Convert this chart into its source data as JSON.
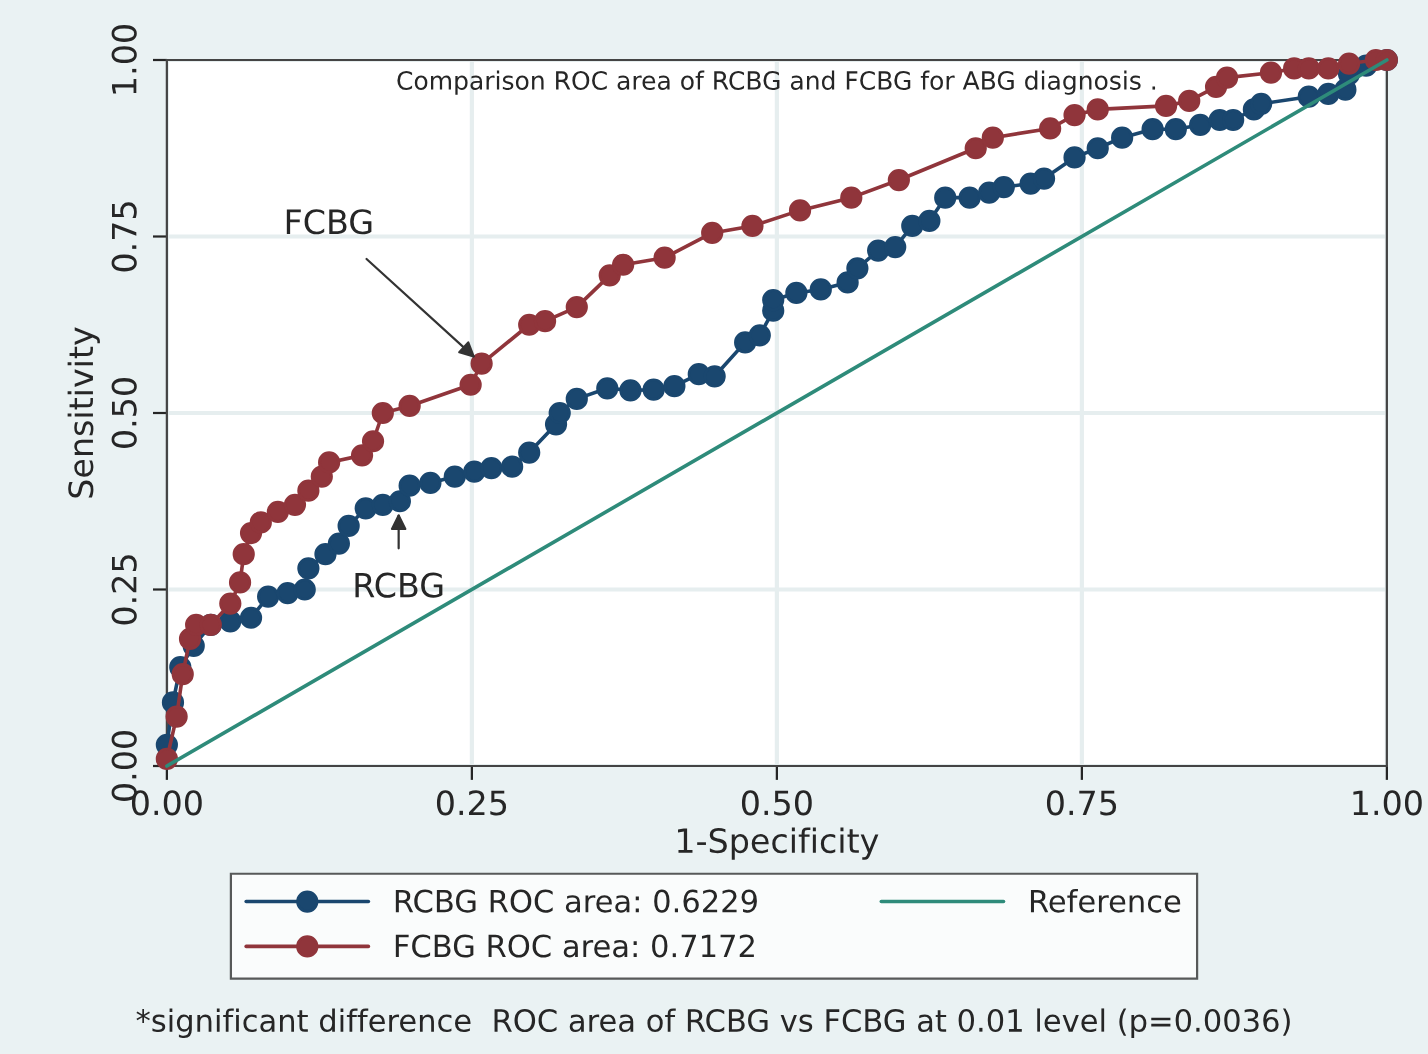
{
  "chart_data": {
    "type": "line",
    "title": "Comparison ROC area of RCBG and FCBG for ABG diagnosis .",
    "xlabel": "1-Specificity",
    "ylabel": "Sensitivity",
    "xlim": [
      0,
      1
    ],
    "ylim": [
      0,
      1
    ],
    "xticks": [
      {
        "value": 0,
        "label": "0.00"
      },
      {
        "value": 0.25,
        "label": "0.25"
      },
      {
        "value": 0.5,
        "label": "0.50"
      },
      {
        "value": 0.75,
        "label": "0.75"
      },
      {
        "value": 1,
        "label": "1.00"
      }
    ],
    "yticks": [
      {
        "value": 0,
        "label": "0.00"
      },
      {
        "value": 0.25,
        "label": "0.25"
      },
      {
        "value": 0.5,
        "label": "0.50"
      },
      {
        "value": 0.75,
        "label": "0.75"
      },
      {
        "value": 1,
        "label": "1.00"
      }
    ],
    "grid": true,
    "legend": "bottom",
    "series": [
      {
        "name": "RCBG ROC area: 0.6229",
        "color": "#1a476f",
        "marker": "circle",
        "x": [
          0,
          0.005,
          0.011,
          0.022,
          0.036,
          0.052,
          0.069,
          0.083,
          0.099,
          0.113,
          0.116,
          0.13,
          0.141,
          0.149,
          0.163,
          0.177,
          0.191,
          0.199,
          0.216,
          0.236,
          0.252,
          0.266,
          0.283,
          0.297,
          0.319,
          0.322,
          0.336,
          0.361,
          0.38,
          0.399,
          0.416,
          0.436,
          0.449,
          0.474,
          0.486,
          0.497,
          0.497,
          0.516,
          0.536,
          0.558,
          0.566,
          0.583,
          0.597,
          0.611,
          0.625,
          0.638,
          0.658,
          0.674,
          0.686,
          0.708,
          0.719,
          0.744,
          0.763,
          0.783,
          0.808,
          0.827,
          0.847,
          0.863,
          0.874,
          0.891,
          0.897,
          0.936,
          0.952,
          0.966,
          0.969,
          0.983,
          1.0
        ],
        "values": [
          0.03,
          0.09,
          0.14,
          0.17,
          0.2,
          0.205,
          0.21,
          0.24,
          0.245,
          0.25,
          0.28,
          0.3,
          0.315,
          0.34,
          0.365,
          0.37,
          0.375,
          0.397,
          0.401,
          0.41,
          0.417,
          0.422,
          0.424,
          0.444,
          0.484,
          0.5,
          0.52,
          0.535,
          0.532,
          0.533,
          0.538,
          0.555,
          0.552,
          0.6,
          0.61,
          0.645,
          0.66,
          0.67,
          0.675,
          0.685,
          0.705,
          0.73,
          0.735,
          0.765,
          0.772,
          0.805,
          0.805,
          0.812,
          0.82,
          0.825,
          0.832,
          0.862,
          0.875,
          0.89,
          0.902,
          0.902,
          0.908,
          0.915,
          0.915,
          0.93,
          0.938,
          0.948,
          0.952,
          0.958,
          0.98,
          0.992,
          1.0
        ]
      },
      {
        "name": "FCBG ROC area: 0.7172",
        "color": "#90353b",
        "marker": "circle",
        "x": [
          0,
          0.008,
          0.013,
          0.019,
          0.024,
          0.036,
          0.052,
          0.06,
          0.063,
          0.069,
          0.077,
          0.091,
          0.105,
          0.116,
          0.127,
          0.133,
          0.16,
          0.169,
          0.177,
          0.199,
          0.249,
          0.258,
          0.297,
          0.31,
          0.336,
          0.363,
          0.374,
          0.408,
          0.447,
          0.48,
          0.519,
          0.561,
          0.6,
          0.663,
          0.677,
          0.724,
          0.744,
          0.763,
          0.819,
          0.838,
          0.86,
          0.869,
          0.905,
          0.924,
          0.936,
          0.952,
          0.969,
          0.991,
          1.0
        ],
        "values": [
          0.01,
          0.07,
          0.13,
          0.18,
          0.2,
          0.2,
          0.23,
          0.26,
          0.3,
          0.33,
          0.345,
          0.36,
          0.37,
          0.39,
          0.41,
          0.43,
          0.44,
          0.46,
          0.5,
          0.51,
          0.54,
          0.57,
          0.625,
          0.63,
          0.65,
          0.695,
          0.71,
          0.72,
          0.755,
          0.765,
          0.787,
          0.805,
          0.83,
          0.875,
          0.89,
          0.903,
          0.922,
          0.93,
          0.935,
          0.942,
          0.962,
          0.975,
          0.982,
          0.988,
          0.988,
          0.988,
          0.995,
          1.0,
          1.0
        ]
      },
      {
        "name": "Reference",
        "color": "#2e8b7a",
        "marker": "none",
        "x": [
          0,
          1
        ],
        "values": [
          0,
          1
        ]
      }
    ],
    "annotations": [
      {
        "text": "FCBG",
        "x": 0.258,
        "y": 0.57
      },
      {
        "text": "RCBG",
        "x": 0.19,
        "y": 0.37
      },
      "*significant difference  ROC area of RCBG vs FCBG at 0.01 level (p=0.0036)"
    ]
  }
}
